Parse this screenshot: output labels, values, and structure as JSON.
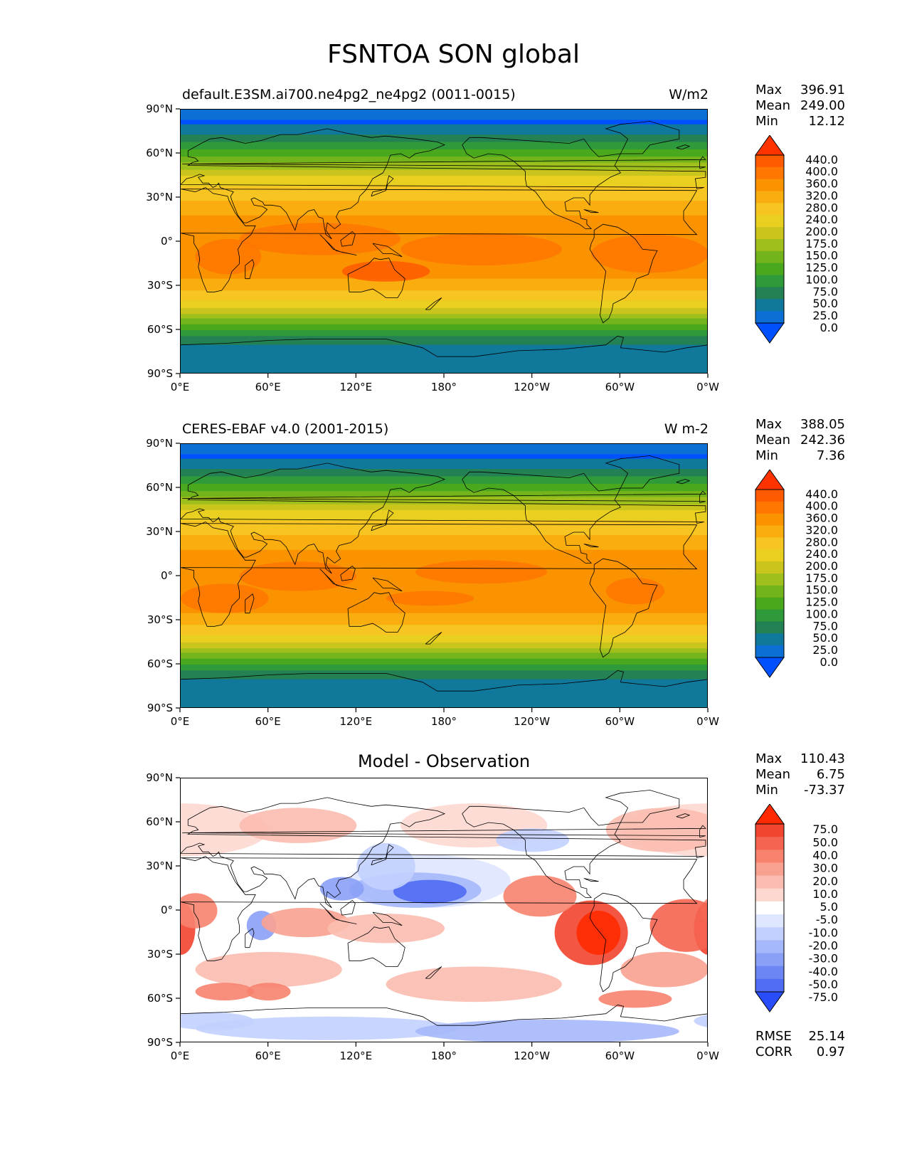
{
  "title": "FSNTOA SON global",
  "panels": [
    {
      "id": "test",
      "title": "default.E3SM.ai700.ne4pg2_ne4pg2 (0011-0015)",
      "center_title": "",
      "units": "W/m2",
      "stats": [
        {
          "label": "Max",
          "value": "396.91"
        },
        {
          "label": "Mean",
          "value": "249.00"
        },
        {
          "label": "Min",
          "value": "12.12"
        }
      ],
      "colorbar": {
        "levels": [
          "440.0",
          "400.0",
          "360.0",
          "320.0",
          "280.0",
          "240.0",
          "200.0",
          "175.0",
          "150.0",
          "125.0",
          "100.0",
          "75.0",
          "50.0",
          "25.0",
          "0.0"
        ],
        "colors": [
          "#ff3300",
          "#ff5a00",
          "#ff7700",
          "#fb9300",
          "#f9ad0e",
          "#f6c521",
          "#e9cf1f",
          "#c9c51d",
          "#9fbf1c",
          "#73b31b",
          "#4aa81e",
          "#2f9a39",
          "#238154",
          "#10789b",
          "#0b6fd5",
          "#0050ff"
        ]
      },
      "field": "mean"
    },
    {
      "id": "ref",
      "title": "CERES-EBAF v4.0 (2001-2015)",
      "center_title": "",
      "units": "W m-2",
      "stats": [
        {
          "label": "Max",
          "value": "388.05"
        },
        {
          "label": "Mean",
          "value": "242.36"
        },
        {
          "label": "Min",
          "value": "7.36"
        }
      ],
      "colorbar": {
        "levels": [
          "440.0",
          "400.0",
          "360.0",
          "320.0",
          "280.0",
          "240.0",
          "200.0",
          "175.0",
          "150.0",
          "125.0",
          "100.0",
          "75.0",
          "50.0",
          "25.0",
          "0.0"
        ],
        "colors": [
          "#ff3300",
          "#ff5a00",
          "#ff7700",
          "#fb9300",
          "#f9ad0e",
          "#f6c521",
          "#e9cf1f",
          "#c9c51d",
          "#9fbf1c",
          "#73b31b",
          "#4aa81e",
          "#2f9a39",
          "#238154",
          "#10789b",
          "#0b6fd5",
          "#0050ff"
        ]
      },
      "field": "mean"
    },
    {
      "id": "diff",
      "title": "",
      "center_title": "Model - Observation",
      "units": "",
      "stats": [
        {
          "label": "Max",
          "value": "110.43"
        },
        {
          "label": "Mean",
          "value": "6.75"
        },
        {
          "label": "Min",
          "value": "-73.37"
        }
      ],
      "colorbar": {
        "levels": [
          "75.0",
          "50.0",
          "40.0",
          "30.0",
          "20.0",
          "10.0",
          "5.0",
          "-5.0",
          "-10.0",
          "-20.0",
          "-30.0",
          "-40.0",
          "-50.0",
          "-75.0"
        ],
        "colors": [
          "#ff2a00",
          "#f24530",
          "#f56450",
          "#f7836f",
          "#f9a190",
          "#fbbcaf",
          "#fdd8d1",
          "#ffffff",
          "#dfe6ff",
          "#c2d0ff",
          "#a5b8fb",
          "#8aa0f7",
          "#6c86f3",
          "#4f6cf3",
          "#2a4dfa"
        ]
      },
      "field": "diff",
      "extra_stats": [
        {
          "label": "RMSE",
          "value": "25.14"
        },
        {
          "label": "CORR",
          "value": "0.97"
        }
      ]
    }
  ],
  "axes": {
    "xticks": [
      "0°E",
      "60°E",
      "120°E",
      "180°",
      "120°W",
      "60°W",
      "0°W"
    ],
    "yticks": [
      "90°N",
      "60°N",
      "30°N",
      "0°",
      "30°S",
      "60°S",
      "90°S"
    ]
  },
  "chart_data": [
    {
      "type": "heatmap",
      "title": "default.E3SM.ai700.ne4pg2_ne4pg2 (0011-0015)",
      "units": "W/m2",
      "x": [
        "0°E",
        "60°E",
        "120°E",
        "180°",
        "120°W",
        "60°W",
        "0°W"
      ],
      "y": [
        "90°N",
        "60°N",
        "30°N",
        "0°",
        "30°S",
        "60°S",
        "90°S"
      ],
      "xlim": [
        0,
        360
      ],
      "ylim": [
        -90,
        90
      ],
      "zonal_mean_profile": {
        "lat": [
          90,
          75,
          60,
          45,
          30,
          15,
          0,
          -15,
          -30,
          -45,
          -60,
          -75,
          -90
        ],
        "value": [
          20,
          70,
          145,
          230,
          290,
          345,
          355,
          345,
          300,
          235,
          160,
          70,
          55
        ]
      },
      "stats": {
        "max": 396.91,
        "mean": 249.0,
        "min": 12.12
      }
    },
    {
      "type": "heatmap",
      "title": "CERES-EBAF v4.0 (2001-2015)",
      "units": "W m-2",
      "x": [
        "0°E",
        "60°E",
        "120°E",
        "180°",
        "120°W",
        "60°W",
        "0°W"
      ],
      "y": [
        "90°N",
        "60°N",
        "30°N",
        "0°",
        "30°S",
        "60°S",
        "90°S"
      ],
      "xlim": [
        0,
        360
      ],
      "ylim": [
        -90,
        90
      ],
      "zonal_mean_profile": {
        "lat": [
          90,
          75,
          60,
          45,
          30,
          15,
          0,
          -15,
          -30,
          -45,
          -60,
          -75,
          -90
        ],
        "value": [
          15,
          65,
          140,
          225,
          285,
          335,
          345,
          340,
          295,
          230,
          155,
          65,
          55
        ]
      },
      "stats": {
        "max": 388.05,
        "mean": 242.36,
        "min": 7.36
      }
    },
    {
      "type": "heatmap",
      "title": "Model - Observation",
      "x": [
        "0°E",
        "60°E",
        "120°E",
        "180°",
        "120°W",
        "60°W",
        "0°W"
      ],
      "y": [
        "90°N",
        "60°N",
        "30°N",
        "0°",
        "30°S",
        "60°S",
        "90°S"
      ],
      "xlim": [
        0,
        360
      ],
      "ylim": [
        -90,
        90
      ],
      "stats": {
        "max": 110.43,
        "mean": 6.75,
        "min": -73.37,
        "rmse": 25.14,
        "corr": 0.97
      }
    }
  ]
}
